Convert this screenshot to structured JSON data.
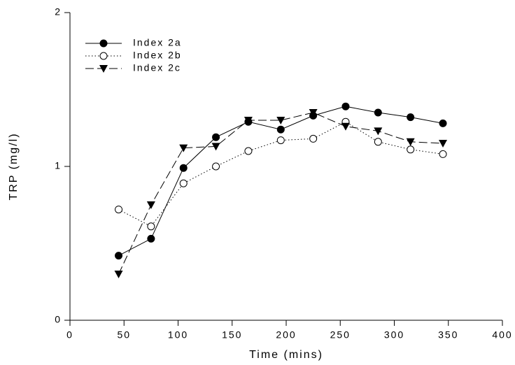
{
  "chart_data": {
    "type": "line",
    "x_label": "Time (mins)",
    "y_label": "TRP (mg/l)",
    "x": [
      45,
      75,
      105,
      135,
      165,
      195,
      225,
      255,
      285,
      315,
      345
    ],
    "series": [
      {
        "name": "Index 2a",
        "color": "#000000",
        "line_style": "solid",
        "marker": "filled-circle",
        "values": [
          0.42,
          0.53,
          0.99,
          1.19,
          1.29,
          1.24,
          1.33,
          1.39,
          1.35,
          1.32,
          1.28
        ]
      },
      {
        "name": "Index 2b",
        "color": "#000000",
        "line_style": "dotted",
        "marker": "open-circle",
        "values": [
          0.72,
          0.61,
          0.89,
          1.0,
          1.1,
          1.17,
          1.18,
          1.29,
          1.16,
          1.11,
          1.08
        ]
      },
      {
        "name": "Index 2c",
        "color": "#000000",
        "line_style": "dashed",
        "marker": "filled-triangle-down",
        "values": [
          0.3,
          0.75,
          1.12,
          1.13,
          1.3,
          1.3,
          1.35,
          1.26,
          1.23,
          1.16,
          1.15
        ]
      }
    ],
    "xlim": [
      0,
      400
    ],
    "xticks": [
      0,
      50,
      100,
      150,
      200,
      250,
      300,
      350,
      400
    ],
    "ylim": [
      0,
      2
    ],
    "yticks": [
      0,
      1,
      2
    ],
    "legend": "top-left",
    "grid": false
  }
}
